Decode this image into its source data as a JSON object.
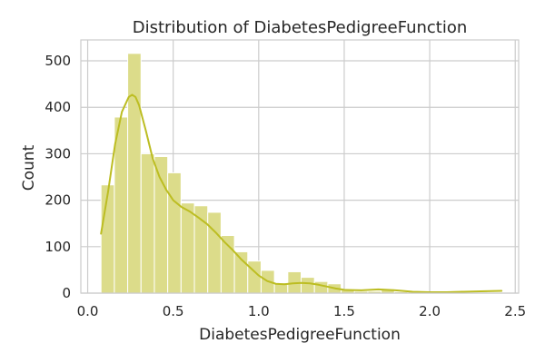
{
  "chart_data": {
    "type": "bar",
    "title": "Distribution of DiabetesPedigreeFunction",
    "xlabel": "DiabetesPedigreeFunction",
    "ylabel": "Count",
    "xlim": [
      -0.04,
      2.52
    ],
    "ylim": [
      0,
      545
    ],
    "xticks": [
      0.0,
      0.5,
      1.0,
      1.5,
      2.0,
      2.5
    ],
    "xtick_labels": [
      "0.0",
      "0.5",
      "1.0",
      "1.5",
      "2.0",
      "2.5"
    ],
    "yticks": [
      0,
      100,
      200,
      300,
      400,
      500
    ],
    "ytick_labels": [
      "0",
      "100",
      "200",
      "300",
      "400",
      "500"
    ],
    "grid": true,
    "bin_edges": [
      0.078,
      0.156,
      0.234,
      0.312,
      0.39,
      0.468,
      0.546,
      0.624,
      0.702,
      0.78,
      0.858,
      0.936,
      1.014,
      1.092,
      1.17,
      1.248,
      1.326,
      1.404,
      1.482,
      1.56,
      1.638,
      1.716,
      1.794,
      1.872,
      1.95,
      2.028,
      2.106,
      2.184,
      2.262,
      2.34,
      2.42
    ],
    "values": [
      233,
      379,
      516,
      300,
      294,
      259,
      194,
      188,
      174,
      124,
      89,
      69,
      49,
      22,
      46,
      34,
      25,
      20,
      8,
      4,
      4,
      9,
      3,
      3,
      0,
      1,
      1,
      0,
      0,
      2
    ],
    "kde": {
      "x": [
        0.078,
        0.12,
        0.16,
        0.2,
        0.24,
        0.26,
        0.28,
        0.3,
        0.34,
        0.38,
        0.42,
        0.46,
        0.5,
        0.55,
        0.6,
        0.65,
        0.7,
        0.75,
        0.8,
        0.85,
        0.9,
        0.95,
        1.0,
        1.05,
        1.1,
        1.15,
        1.2,
        1.25,
        1.3,
        1.35,
        1.4,
        1.45,
        1.5,
        1.6,
        1.7,
        1.8,
        1.9,
        2.0,
        2.1,
        2.2,
        2.3,
        2.42
      ],
      "y": [
        128,
        220,
        320,
        390,
        422,
        427,
        422,
        405,
        350,
        290,
        250,
        222,
        200,
        185,
        175,
        162,
        148,
        130,
        110,
        92,
        72,
        55,
        38,
        26,
        20,
        19,
        21,
        22,
        21,
        18,
        14,
        10,
        7,
        6,
        8,
        6,
        3,
        2,
        2,
        3,
        4,
        5
      ]
    },
    "colors": {
      "bar_fill": "#DCDC8A",
      "bar_stroke": "#ffffff",
      "kde_line": "#BCBD22",
      "grid": "#CCCCCC",
      "spine": "#CCCCCC",
      "text": "#262626",
      "background": "#ffffff"
    }
  }
}
